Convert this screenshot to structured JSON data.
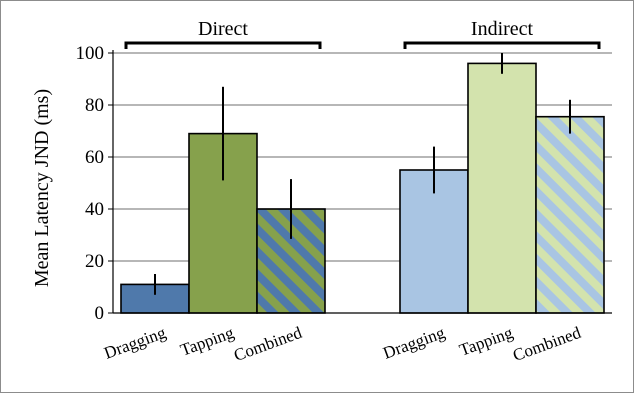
{
  "chart_data": {
    "type": "bar",
    "ylabel": "Mean Latency JND (ms)",
    "ylim": [
      0,
      100
    ],
    "yticks": [
      "0",
      "20",
      "40",
      "60",
      "80",
      "100"
    ],
    "grid": true,
    "groups": [
      {
        "name": "Direct",
        "bars": [
          {
            "category": "Dragging",
            "value": 11,
            "error": 4,
            "fill": "solid",
            "color": "#4f79ab"
          },
          {
            "category": "Tapping",
            "value": 69,
            "error": 18,
            "fill": "solid",
            "color": "#86a14c"
          },
          {
            "category": "Combined",
            "value": 40,
            "error": 11.5,
            "fill": "stripes",
            "color": "#4f79ab",
            "stripe_color": "#86a14c"
          }
        ]
      },
      {
        "name": "Indirect",
        "bars": [
          {
            "category": "Dragging",
            "value": 55,
            "error": 9,
            "fill": "solid",
            "color": "#a9c5e3"
          },
          {
            "category": "Tapping",
            "value": 96,
            "error": 4,
            "fill": "solid",
            "color": "#d3e3ad"
          },
          {
            "category": "Combined",
            "value": 75.5,
            "error": 6.5,
            "fill": "stripes",
            "color": "#a9c5e3",
            "stripe_color": "#d3e3ad"
          }
        ]
      }
    ]
  }
}
